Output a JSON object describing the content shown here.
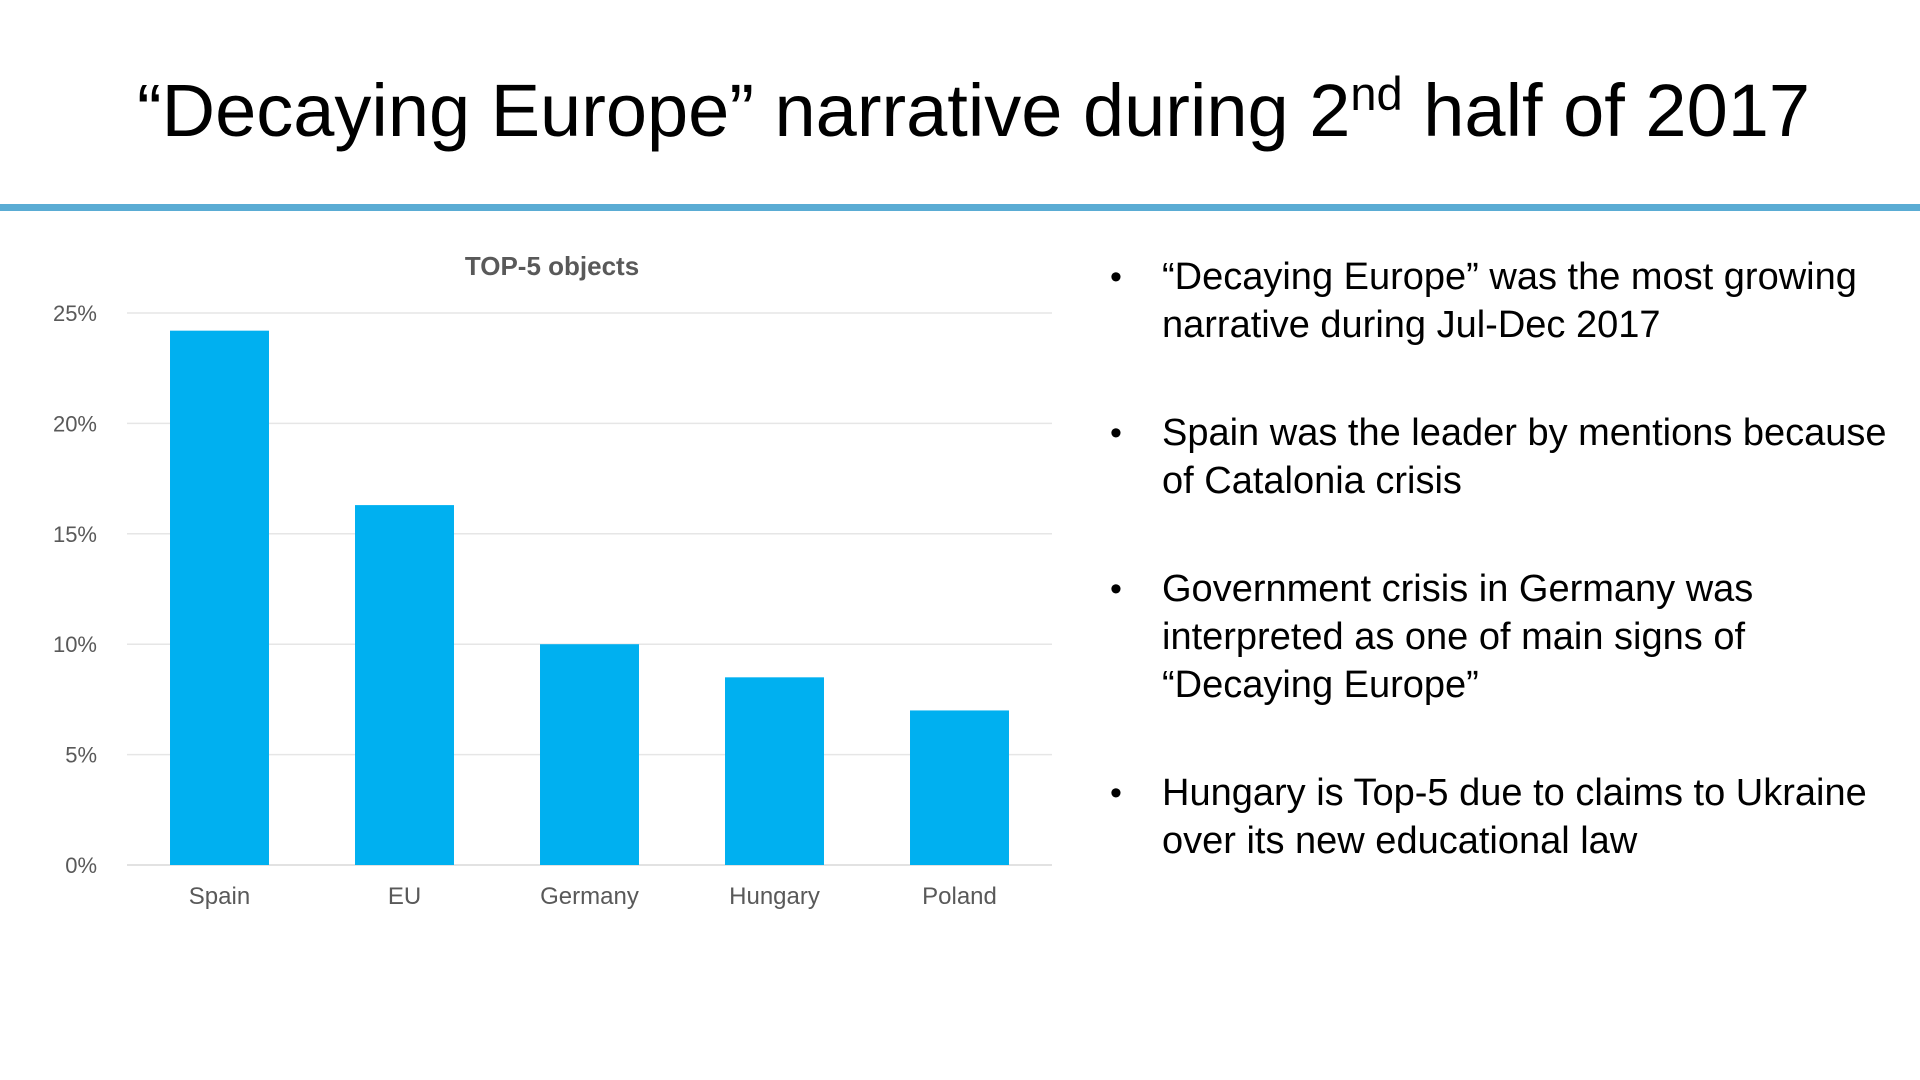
{
  "title": {
    "prefix": "“Decaying Europe” narrative during 2",
    "superscript": "nd",
    "suffix": " half of 2017"
  },
  "colors": {
    "accent_rule": "#5aacd4",
    "bar": "#00b0f0",
    "grid": "#e6e6e6",
    "axis_text": "#595959",
    "chart_title": "#595959"
  },
  "chart_data": {
    "type": "bar",
    "title": "TOP-5 objects",
    "categories": [
      "Spain",
      "EU",
      "Germany",
      "Hungary",
      "Poland"
    ],
    "values": [
      24.2,
      16.3,
      10.0,
      8.5,
      7.0
    ],
    "ylim": [
      0,
      25
    ],
    "yticks": [
      0,
      5,
      10,
      15,
      20,
      25
    ],
    "ytick_labels": [
      "0%",
      "5%",
      "10%",
      "15%",
      "20%",
      "25%"
    ],
    "xlabel": "",
    "ylabel": "",
    "grid": true,
    "legend": "none"
  },
  "bullets": [
    {
      "marker": "•",
      "text": "“Decaying Europe” was the most growing narrative during Jul-Dec 2017"
    },
    {
      "marker": "•",
      "text": "Spain was the leader by mentions because of Catalonia crisis"
    },
    {
      "marker": "•",
      "text": "Government crisis in Germany was interpreted as one of main signs of “Decaying Europe”"
    },
    {
      "marker": "•",
      "text": "Hungary is Top-5 due to claims to Ukraine over its new educational law"
    }
  ]
}
